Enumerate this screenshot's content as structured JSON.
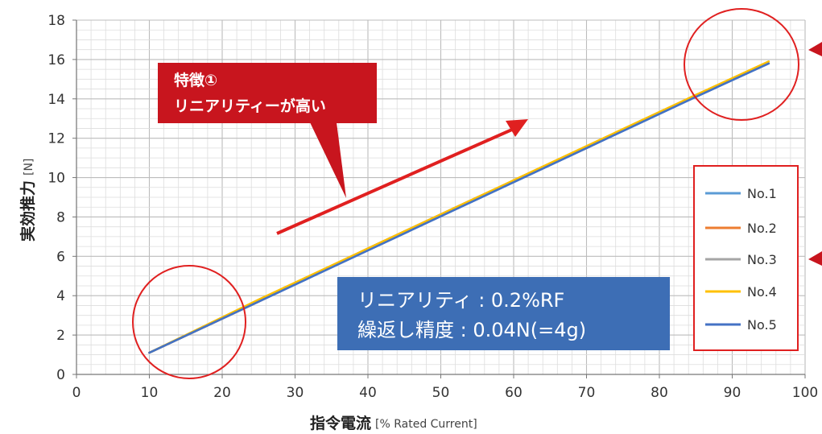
{
  "chart_data": {
    "type": "line",
    "xlim": [
      0,
      100
    ],
    "ylim": [
      0,
      18
    ],
    "x_ticks": [
      "0",
      "10",
      "20",
      "30",
      "40",
      "50",
      "60",
      "70",
      "80",
      "90",
      "100"
    ],
    "y_ticks": [
      "0",
      "2",
      "4",
      "6",
      "8",
      "10",
      "12",
      "14",
      "16",
      "18"
    ],
    "xlabel_main": "指令電流",
    "xlabel_unit": "[% Rated Current]",
    "ylabel_main": "実効推力",
    "ylabel_unit": "[N]",
    "grid": true,
    "legend_position": "right",
    "series": [
      {
        "name": "No.1",
        "color": "#5b9bd5",
        "x": [
          10,
          25,
          40,
          55,
          70,
          85,
          95
        ],
        "y": [
          1.1,
          3.7,
          6.3,
          8.9,
          11.5,
          14.1,
          15.8
        ]
      },
      {
        "name": "No.2",
        "color": "#ed7d31",
        "x": [
          10,
          25,
          40,
          55,
          70,
          85,
          95
        ],
        "y": [
          1.1,
          3.7,
          6.4,
          9.0,
          11.5,
          14.2,
          15.8
        ]
      },
      {
        "name": "No.3",
        "color": "#a5a5a5",
        "x": [
          10,
          25,
          40,
          55,
          70,
          85,
          95
        ],
        "y": [
          1.1,
          3.7,
          6.4,
          9.0,
          11.5,
          14.2,
          15.8
        ]
      },
      {
        "name": "No.4",
        "color": "#ffc000",
        "x": [
          10,
          25,
          40,
          55,
          70,
          85,
          95
        ],
        "y": [
          1.1,
          3.8,
          6.4,
          9.0,
          11.6,
          14.2,
          15.9
        ]
      },
      {
        "name": "No.5",
        "color": "#4472c4",
        "x": [
          10,
          25,
          40,
          55,
          70,
          85,
          95
        ],
        "y": [
          1.1,
          3.7,
          6.3,
          8.9,
          11.5,
          14.1,
          15.8
        ]
      }
    ]
  },
  "callout": {
    "line1": "特徴①",
    "line2": "リニアリティーが高い",
    "bg_color": "#c8151e"
  },
  "info_box": {
    "line1": "リニアリティ : 0.2%RF",
    "line2": "繰返し精度 : 0.04N(=4g)",
    "bg_color": "#3d6eb5"
  },
  "highlight_color": "#e02020"
}
